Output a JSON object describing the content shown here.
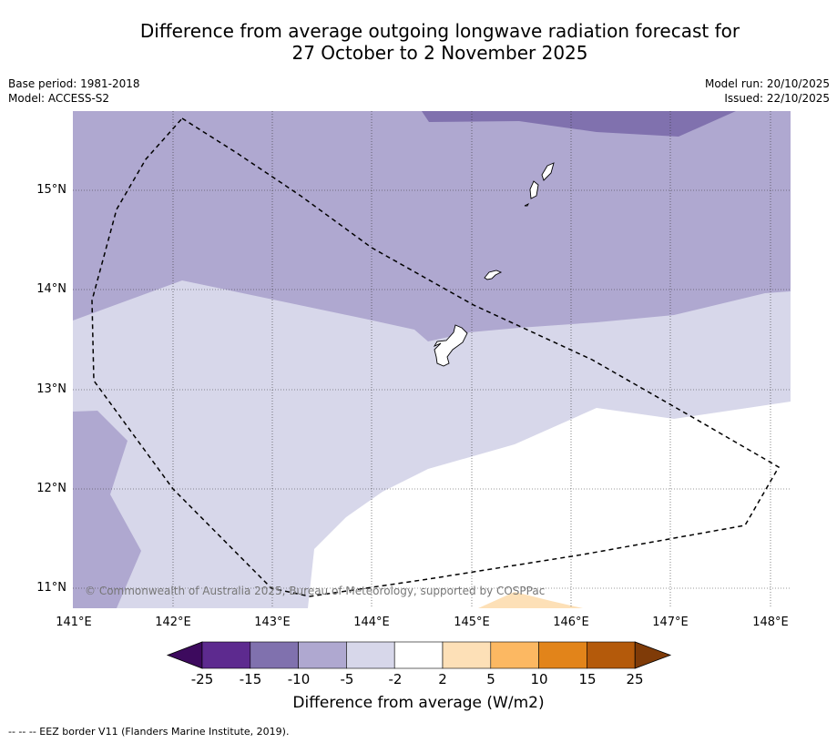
{
  "title": {
    "line1": "Difference from average outgoing longwave radiation forecast for",
    "line2": "27 October to 2 November 2025"
  },
  "meta_left": {
    "base_period": "Base period: 1981-2018",
    "model": "Model: ACCESS-S2"
  },
  "meta_right": {
    "model_run": "Model run: 20/10/2025",
    "issued": "Issued: 22/10/2025"
  },
  "map": {
    "lat_labels": [
      "15°N",
      "14°N",
      "13°N",
      "12°N",
      "11°N"
    ],
    "lon_labels": [
      "141°E",
      "142°E",
      "143°E",
      "144°E",
      "145°E",
      "146°E",
      "147°E",
      "148°E"
    ],
    "copyright": "© Commonwealth of Australia 2025, Bureau of Meteorology, supported by COSPPac"
  },
  "colorbar": {
    "ticks": [
      "-25",
      "-15",
      "-10",
      "-5",
      "-2",
      "2",
      "5",
      "10",
      "15",
      "25"
    ],
    "colors": [
      "#3d0a5e",
      "#5d2a8f",
      "#8071ae",
      "#afa8d0",
      "#d7d7ea",
      "#ffffff",
      "#fde0b7",
      "#fcb862",
      "#e2841a",
      "#b45a0b",
      "#7f3b08"
    ],
    "label": "Difference from average (W/m2)"
  },
  "footer": "--  --  -- EEZ border V11 (Flanders Marine Institute, 2019)."
}
